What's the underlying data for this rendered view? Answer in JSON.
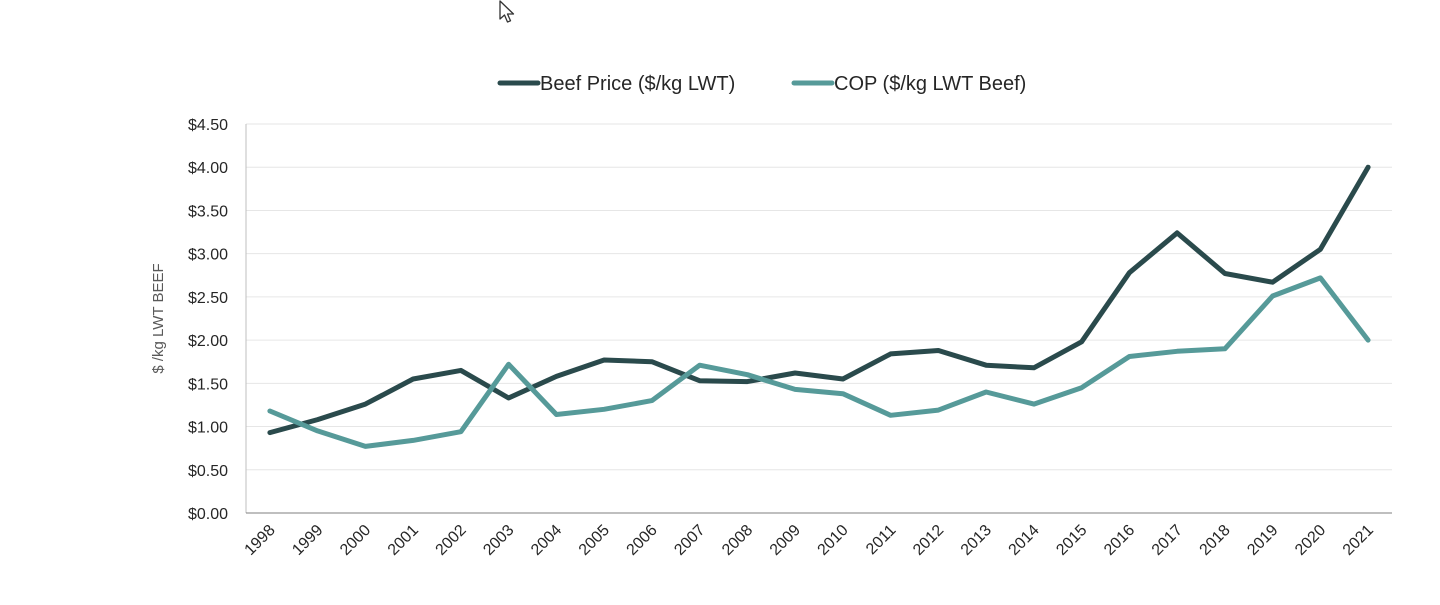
{
  "chart_data": {
    "type": "line",
    "title": "",
    "xlabel": "",
    "ylabel": "$ /kg LWT BEEF",
    "ylim": [
      0,
      4.5
    ],
    "ytick_step": 0.5,
    "y_tick_labels": [
      "$0.00",
      "$0.50",
      "$1.00",
      "$1.50",
      "$2.00",
      "$2.50",
      "$3.00",
      "$3.50",
      "$4.00",
      "$4.50"
    ],
    "grid": true,
    "legend_position": "top",
    "categories": [
      "1998",
      "1999",
      "2000",
      "2001",
      "2002",
      "2003",
      "2004",
      "2005",
      "2006",
      "2007",
      "2008",
      "2009",
      "2010",
      "2011",
      "2012",
      "2013",
      "2014",
      "2015",
      "2016",
      "2017",
      "2018",
      "2019",
      "2020",
      "2021"
    ],
    "series": [
      {
        "name": "Beef Price ($/kg LWT)",
        "color": "#2a4a4c",
        "values": [
          0.93,
          1.08,
          1.26,
          1.55,
          1.65,
          1.33,
          1.58,
          1.77,
          1.75,
          1.53,
          1.52,
          1.62,
          1.55,
          1.84,
          1.88,
          1.71,
          1.68,
          1.98,
          2.78,
          3.24,
          2.77,
          2.67,
          3.05,
          4.0
        ]
      },
      {
        "name": "COP ($/kg LWT Beef)",
        "color": "#569a99",
        "values": [
          1.18,
          0.95,
          0.77,
          0.84,
          0.94,
          1.72,
          1.14,
          1.2,
          1.3,
          1.71,
          1.6,
          1.43,
          1.38,
          1.13,
          1.19,
          1.4,
          1.26,
          1.45,
          1.81,
          1.87,
          1.9,
          2.51,
          2.72,
          2.0
        ]
      }
    ]
  }
}
